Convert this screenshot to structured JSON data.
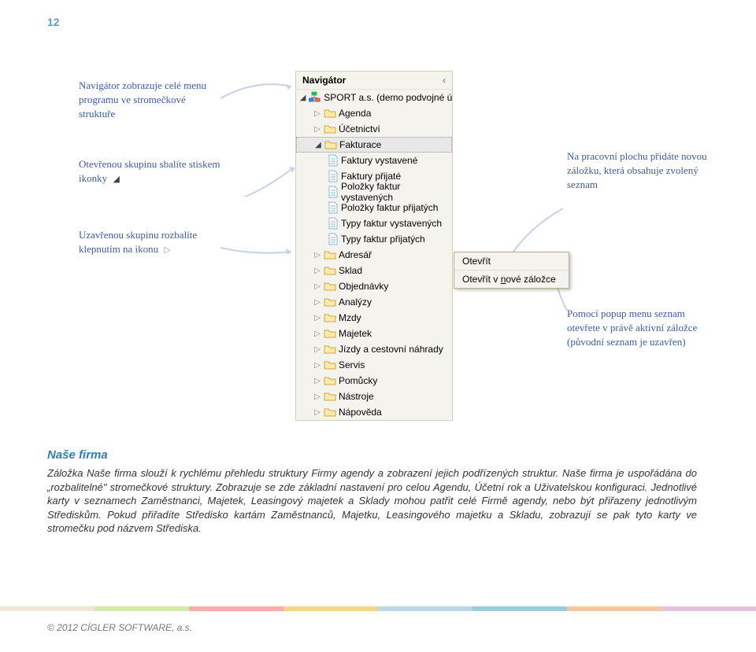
{
  "page_number": "12",
  "callouts": {
    "top": "Navigátor zobrazuje celé menu programu ve stromečkové struktuře",
    "mid": "Otevřenou skupinu sbalíte stiskem ikonky",
    "bot": "Uzavřenou skupinu rozbalíte klepnutím na ikonu",
    "right_top": "Na pracovní plochu přidáte novou záložku, která obsahuje zvolený seznam",
    "right_bot": "Pomocí popup menu seznam otevřete v právě aktivní záložce (původní seznam je uzavřen)"
  },
  "navigator": {
    "title": "Navigátor",
    "root": {
      "label": "SPORT a.s. (demo podvojné úče"
    },
    "items1": [
      {
        "triangle": true,
        "label": "Agenda"
      },
      {
        "triangle": true,
        "label": "Účetnictví"
      }
    ],
    "fakturace": {
      "label": "Fakturace"
    },
    "fakturace_children": [
      "Faktury vystavené",
      "Faktury přijaté",
      "Položky faktur vystavených",
      "Položky faktur přijatých",
      "Typy faktur vystavených",
      "Typy faktur přijatých"
    ],
    "items2": [
      "Adresář",
      "Sklad",
      "Objednávky",
      "Analýzy",
      "Mzdy",
      "Majetek",
      "Jízdy a cestovní náhrady",
      "Servis",
      "Pomůcky",
      "Nástroje",
      "Nápověda"
    ]
  },
  "popup": {
    "open": "Otevřít",
    "open_new": "Otevřít v nové záložce",
    "underline_letter": "n"
  },
  "section": {
    "title": "Naše firma",
    "body": "Záložka Naše firma slouží k rychlému přehledu struktury Firmy agendy a zobrazení jejich podřízených struktur. Naše firma je uspořádána do „rozbalitelné\" stromečkové struktury. Zobrazuje se zde základní nastavení pro celou Agendu, Účetní rok a Uživatelskou konfiguraci. Jednotlivé karty v seznamech Zaměstnanci, Majetek, Leasingový majetek a Sklady mohou patřit celé Firmě agendy, nebo být přiřazeny jednotlivým Střediskům. Pokud přiřadíte Středisko kartám Zaměstnanců, Majetku, Leasingového majetku a Skladu, zobrazují se pak tyto karty ve stromečku pod názvem Střediska."
  },
  "footer": {
    "colors": [
      "#efe6d8",
      "#d4e8b0",
      "#f3b0a8",
      "#f5d58a",
      "#b9d7e8",
      "#9fc9de",
      "#f2caa0",
      "#e6c2df"
    ],
    "copyright": "© 2012 CÍGLER SOFTWARE, a.s."
  },
  "colors": {
    "callout": "#3d5ba6",
    "arrow": "#c8d1e8",
    "folder_fill": "#ffe9a8",
    "folder_stroke": "#caa84a",
    "doc_stroke": "#8bb7d6"
  }
}
